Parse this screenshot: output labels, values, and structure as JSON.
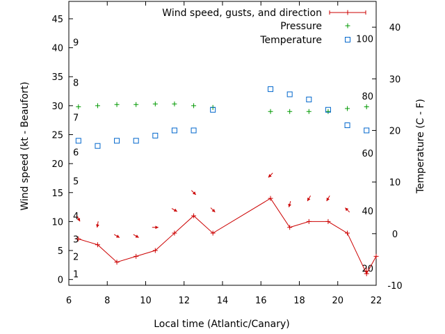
{
  "chart_data": {
    "type": "scatter",
    "title": "",
    "xlabel": "Local time (Atlantic/Canary)",
    "ylabel": "Wind speed (kt - Beaufort)",
    "y2label": "Temperature (C - F)",
    "xlim": [
      6,
      22
    ],
    "ylim": [
      -1,
      48
    ],
    "y2lim": [
      -10,
      45
    ],
    "xticks": [
      6,
      8,
      10,
      12,
      14,
      16,
      18,
      20,
      22
    ],
    "yticks": [
      0,
      5,
      10,
      15,
      20,
      25,
      30,
      35,
      40,
      45
    ],
    "y2ticks": [
      -10,
      0,
      10,
      20,
      30,
      40
    ],
    "beaufort": [
      {
        "label": "1",
        "y": 1
      },
      {
        "label": "2",
        "y": 4
      },
      {
        "label": "3",
        "y": 7
      },
      {
        "label": "4",
        "y": 11
      },
      {
        "label": "5",
        "y": 17
      },
      {
        "label": "6",
        "y": 22
      },
      {
        "label": "7",
        "y": 28
      },
      {
        "label": "8",
        "y": 34
      },
      {
        "label": "9",
        "y": 41
      }
    ],
    "fahrenheit": [
      {
        "label": "20",
        "y2": -6.7
      },
      {
        "label": "40",
        "y2": 4.4
      },
      {
        "label": "60",
        "y2": 15.6
      },
      {
        "label": "80",
        "y2": 26.7
      },
      {
        "label": "100",
        "y2": 37.8
      }
    ],
    "series": [
      {
        "name": "Wind speed, gusts, and direction",
        "color": "#cc0000",
        "marker": "plus",
        "axis": "y",
        "x": [
          6.5,
          7.5,
          8.5,
          9.5,
          10.5,
          11.5,
          12.5,
          13.5,
          16.5,
          17.5,
          18.5,
          19.5,
          20.5,
          21.5,
          22
        ],
        "y": [
          7,
          6,
          3,
          4,
          5,
          8,
          11,
          8,
          14,
          9,
          10,
          10,
          8,
          1,
          4
        ],
        "gust_y": [
          10.5,
          9.5,
          7.5,
          7.5,
          9,
          12,
          15,
          12,
          18,
          13,
          14,
          14,
          12,
          1.5,
          3
        ],
        "direction_deg": [
          30,
          350,
          60,
          60,
          90,
          60,
          45,
          45,
          315,
          345,
          330,
          330,
          225,
          0,
          0
        ]
      },
      {
        "name": "Pressure",
        "color": "#009900",
        "marker": "plus",
        "axis": "y",
        "x": [
          6.5,
          7.5,
          8.5,
          9.5,
          10.5,
          11.5,
          12.5,
          13.5,
          16.5,
          17.5,
          18.5,
          19.5,
          20.5,
          21.5
        ],
        "y": [
          29.8,
          30.0,
          30.2,
          30.2,
          30.3,
          30.3,
          30.0,
          29.7,
          29.0,
          29.0,
          29.0,
          29.0,
          29.5,
          29.8
        ]
      },
      {
        "name": "Temperature",
        "color": "#0066cc",
        "marker": "square",
        "axis": "y2",
        "x": [
          6.5,
          7.5,
          8.5,
          9.5,
          10.5,
          11.5,
          12.5,
          13.5,
          16.5,
          17.5,
          18.5,
          19.5,
          20.5,
          21.5
        ],
        "y": [
          18,
          17,
          18,
          18,
          19,
          20,
          20,
          24,
          28,
          27,
          26,
          24,
          21,
          20
        ]
      }
    ],
    "legend_position": "top-right"
  }
}
